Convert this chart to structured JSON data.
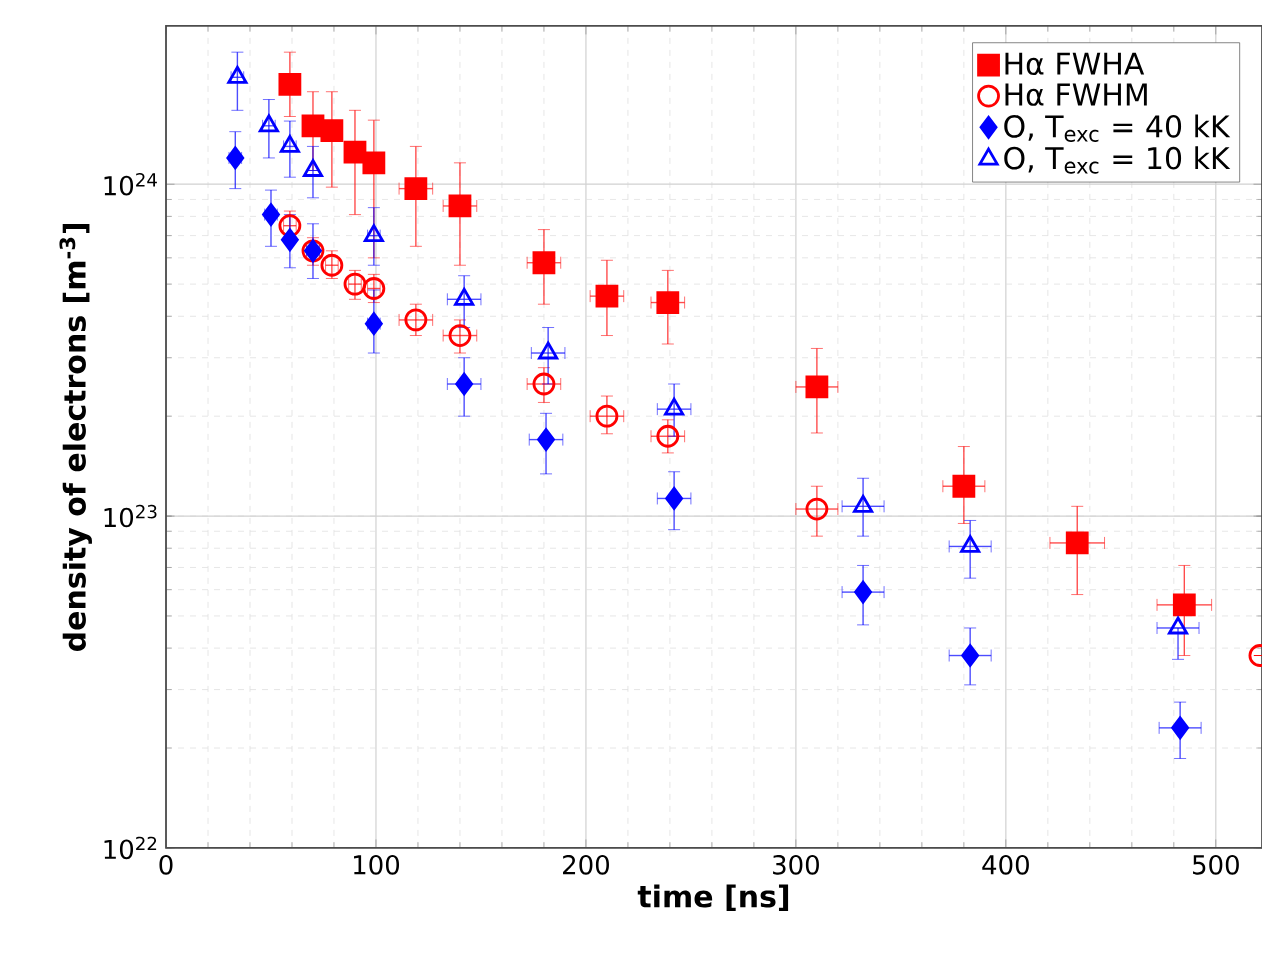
{
  "chart_data": {
    "type": "scatter",
    "xlabel": "time [ns]",
    "ylabel": "density of electrons [m$^{-3}$]",
    "xlim": [
      0,
      522
    ],
    "xticks": [
      0,
      100,
      200,
      300,
      400,
      500
    ],
    "ylim": [
      1e+22,
      3e+24
    ],
    "yticks": [
      {
        "value": 1e+22,
        "label": "10$^{22}$"
      },
      {
        "value": 1e+23,
        "label": "10$^{23}$"
      },
      {
        "value": 1e+24,
        "label": "10$^{24}$"
      }
    ],
    "log": "y",
    "grid": true,
    "legend": "top right",
    "series": [
      {
        "name": "Hα FWHA",
        "color": "#ff0000",
        "marker": "square",
        "x": [
          59,
          70,
          79,
          90,
          99,
          119,
          140,
          180,
          210,
          239,
          310,
          380,
          434,
          485
        ],
        "values": [
          2e+24,
          1.5e+24,
          1.45e+24,
          1.25e+24,
          1.16e+24,
          9.7e+23,
          8.6e+23,
          5.8e+23,
          4.6e+23,
          4.4e+23,
          2.45e+23,
          1.23e+23,
          8.3e+22,
          5.4e+22
        ],
        "errors": [
          [
            1.6e+24,
            2.5e+24
          ],
          [
            1.1e+24,
            1.9e+24
          ],
          [
            9.8e+23,
            1.9e+24
          ],
          [
            8.1e+23,
            1.67e+24
          ],
          [
            6e+23,
            1.56e+24
          ],
          [
            6.5e+23,
            1.3e+24
          ],
          [
            5.7e+23,
            1.16e+24
          ],
          [
            4.35e+23,
            7.3e+23
          ],
          [
            3.5e+23,
            5.9e+23
          ],
          [
            3.3e+23,
            5.5e+23
          ],
          [
            1.78e+23,
            3.2e+23
          ],
          [
            9.5e+22,
            1.62e+23
          ],
          [
            5.8e+22,
            1.07e+23
          ],
          [
            3.8e+22,
            7.1e+22
          ]
        ],
        "xerrors": [
          3,
          3,
          3,
          3,
          3,
          8,
          8,
          8,
          8,
          8,
          10,
          10,
          13,
          13
        ]
      },
      {
        "name": "Hα FWHM",
        "color": "#ff0000",
        "marker": "circle",
        "x": [
          59,
          70,
          79,
          90,
          99,
          119,
          140,
          180,
          210,
          239,
          310,
          521
        ],
        "values": [
          7.5e+23,
          6.3e+23,
          5.7e+23,
          5e+23,
          4.85e+23,
          3.9e+23,
          3.5e+23,
          2.5e+23,
          2e+23,
          1.74e+23,
          1.05e+23,
          3.8e+22
        ],
        "errors": [
          [
            6.8e+23,
            8.3e+23
          ],
          [
            5.7e+23,
            6.9e+23
          ],
          [
            5.2e+23,
            6.3e+23
          ],
          [
            4.5e+23,
            5.5e+23
          ],
          [
            4.4e+23,
            5.35e+23
          ],
          [
            3.5e+23,
            4.35e+23
          ],
          [
            3.1e+23,
            3.9e+23
          ],
          [
            2.2e+23,
            2.8e+23
          ],
          [
            1.77e+23,
            2.3e+23
          ],
          [
            1.55e+23,
            1.95e+23
          ],
          [
            8.7e+22,
            1.23e+23
          ],
          null
        ],
        "xerrors": [
          3,
          3,
          3,
          3,
          3,
          8,
          8,
          8,
          8,
          8,
          10,
          null
        ]
      },
      {
        "name": "O, T$_{exc}$ = 40 kK",
        "color": "#0000ff",
        "marker": "diamond",
        "x": [
          33,
          50,
          59,
          70,
          99,
          142,
          181,
          242,
          332,
          383,
          483
        ],
        "values": [
          1.2e+24,
          8.1e+23,
          6.8e+23,
          6.3e+23,
          3.8e+23,
          2.5e+23,
          1.7e+23,
          1.13e+23,
          5.9e+22,
          3.8e+22,
          2.3e+22
        ],
        "errors": [
          [
            9.7e+23,
            1.44e+24
          ],
          [
            6.5e+23,
            9.6e+23
          ],
          [
            5.6e+23,
            8.1e+23
          ],
          [
            5.2e+23,
            7.6e+23
          ],
          [
            3.1e+23,
            4.8e+23
          ],
          [
            2e+23,
            3e+23
          ],
          [
            1.34e+23,
            2.04e+23
          ],
          [
            9.1e+22,
            1.36e+23
          ],
          [
            4.7e+22,
            7.1e+22
          ],
          [
            3.1e+22,
            4.6e+22
          ],
          [
            1.86e+22,
            2.75e+22
          ]
        ],
        "xerrors": [
          3,
          3,
          null,
          3,
          3,
          8,
          8,
          8,
          10,
          10,
          10
        ]
      },
      {
        "name": "O, T$_{exc}$ = 10 kK",
        "color": "#0000ff",
        "marker": "triangle",
        "x": [
          34,
          49,
          59,
          70,
          99,
          142,
          182,
          242,
          332,
          383,
          482
        ],
        "values": [
          2.1e+24,
          1.5e+24,
          1.3e+24,
          1.1e+24,
          7e+23,
          4.5e+23,
          3.1e+23,
          2.1e+23,
          1.07e+23,
          8.1e+22,
          4.6e+22
        ],
        "errors": [
          [
            1.67e+24,
            2.5e+24
          ],
          [
            1.2e+24,
            1.8e+24
          ],
          [
            1.05e+24,
            1.55e+24
          ],
          [
            9.1e+23,
            1.3e+24
          ],
          [
            5.7e+23,
            8.5e+23
          ],
          [
            3.7e+23,
            5.3e+23
          ],
          [
            2.5e+23,
            3.7e+23
          ],
          [
            1.74e+23,
            2.5e+23
          ],
          [
            8.7e+22,
            1.3e+23
          ],
          [
            6.5e+22,
            9.7e+22
          ],
          [
            3.7e+22,
            4.6e+22
          ]
        ],
        "xerrors": [
          3,
          3,
          3,
          null,
          3,
          8,
          8,
          8,
          10,
          10,
          10
        ]
      }
    ]
  }
}
